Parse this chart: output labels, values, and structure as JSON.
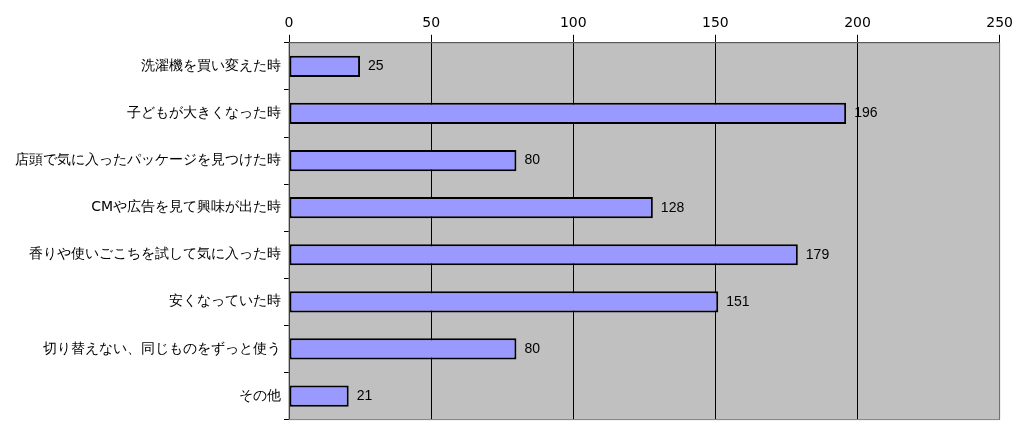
{
  "chart_data": {
    "type": "bar",
    "orientation": "horizontal",
    "categories": [
      "洗濯機を買い変えた時",
      "子どもが大きくなった時",
      "店頭で気に入ったパッケージを見つけた時",
      "CMや広告を見て興味が出た時",
      "香りや使いごこちを試して気に入った時",
      "安くなっていた時",
      "切り替えない、同じものをずっと使う",
      "その他"
    ],
    "values": [
      25,
      196,
      80,
      128,
      179,
      151,
      80,
      21
    ],
    "color": "#9999ff",
    "xlim": [
      0,
      250
    ],
    "xticks": [
      0,
      50,
      100,
      150,
      200,
      250
    ],
    "grid": "x",
    "legend": false,
    "data_labels": true
  }
}
